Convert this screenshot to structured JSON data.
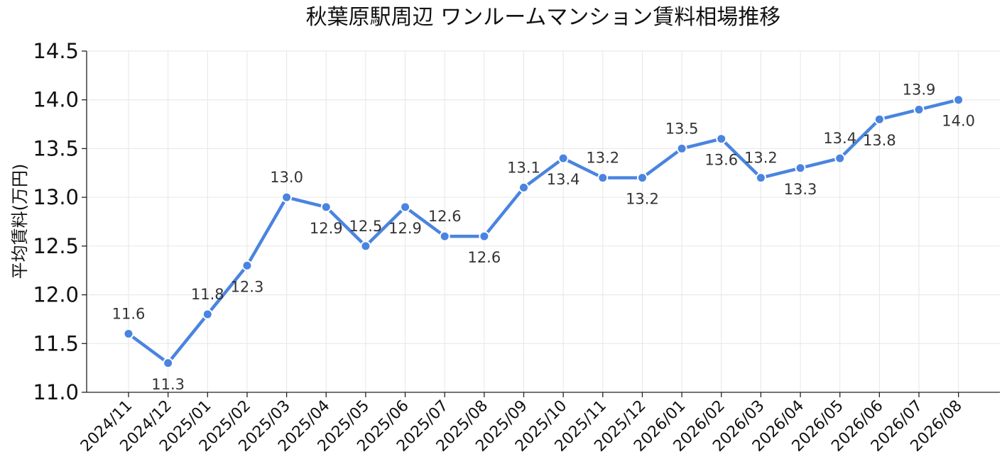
{
  "chart_data": {
    "type": "line",
    "title": "秋葉原駅周辺 ワンルームマンション賃料相場推移",
    "xlabel": "",
    "ylabel": "平均賃料(万円)",
    "ylim": [
      11.0,
      14.5
    ],
    "yticks": [
      "11.0",
      "11.5",
      "12.0",
      "12.5",
      "13.0",
      "13.5",
      "14.0",
      "14.5"
    ],
    "grid": true,
    "color": "#4a84e0",
    "categories": [
      "2024/11",
      "2024/12",
      "2025/01",
      "2025/02",
      "2025/03",
      "2025/04",
      "2025/05",
      "2025/06",
      "2025/07",
      "2025/08",
      "2025/09",
      "2025/10",
      "2025/11",
      "2025/12",
      "2026/01",
      "2026/02",
      "2026/03",
      "2026/04",
      "2026/05",
      "2026/06",
      "2026/07",
      "2026/08"
    ],
    "series": [
      {
        "values": [
          11.6,
          11.3,
          11.8,
          12.3,
          13.0,
          12.9,
          12.5,
          12.9,
          12.6,
          12.6,
          13.1,
          13.4,
          13.2,
          13.2,
          13.5,
          13.6,
          13.2,
          13.3,
          13.4,
          13.8,
          13.9,
          14.0
        ],
        "labels": [
          "11.6",
          "11.3",
          "11.8",
          "12.3",
          "13.0",
          "12.9",
          "12.5",
          "12.9",
          "12.6",
          "12.6",
          "13.1",
          "13.4",
          "13.2",
          "13.2",
          "13.5",
          "13.6",
          "13.2",
          "13.3",
          "13.4",
          "13.8",
          "13.9",
          "14.0"
        ],
        "label_positions": [
          "above",
          "below",
          "above",
          "below",
          "above",
          "below",
          "above",
          "below",
          "above",
          "below",
          "above",
          "below",
          "above",
          "below",
          "above",
          "below",
          "above",
          "below",
          "above",
          "below",
          "above",
          "below"
        ]
      }
    ]
  }
}
